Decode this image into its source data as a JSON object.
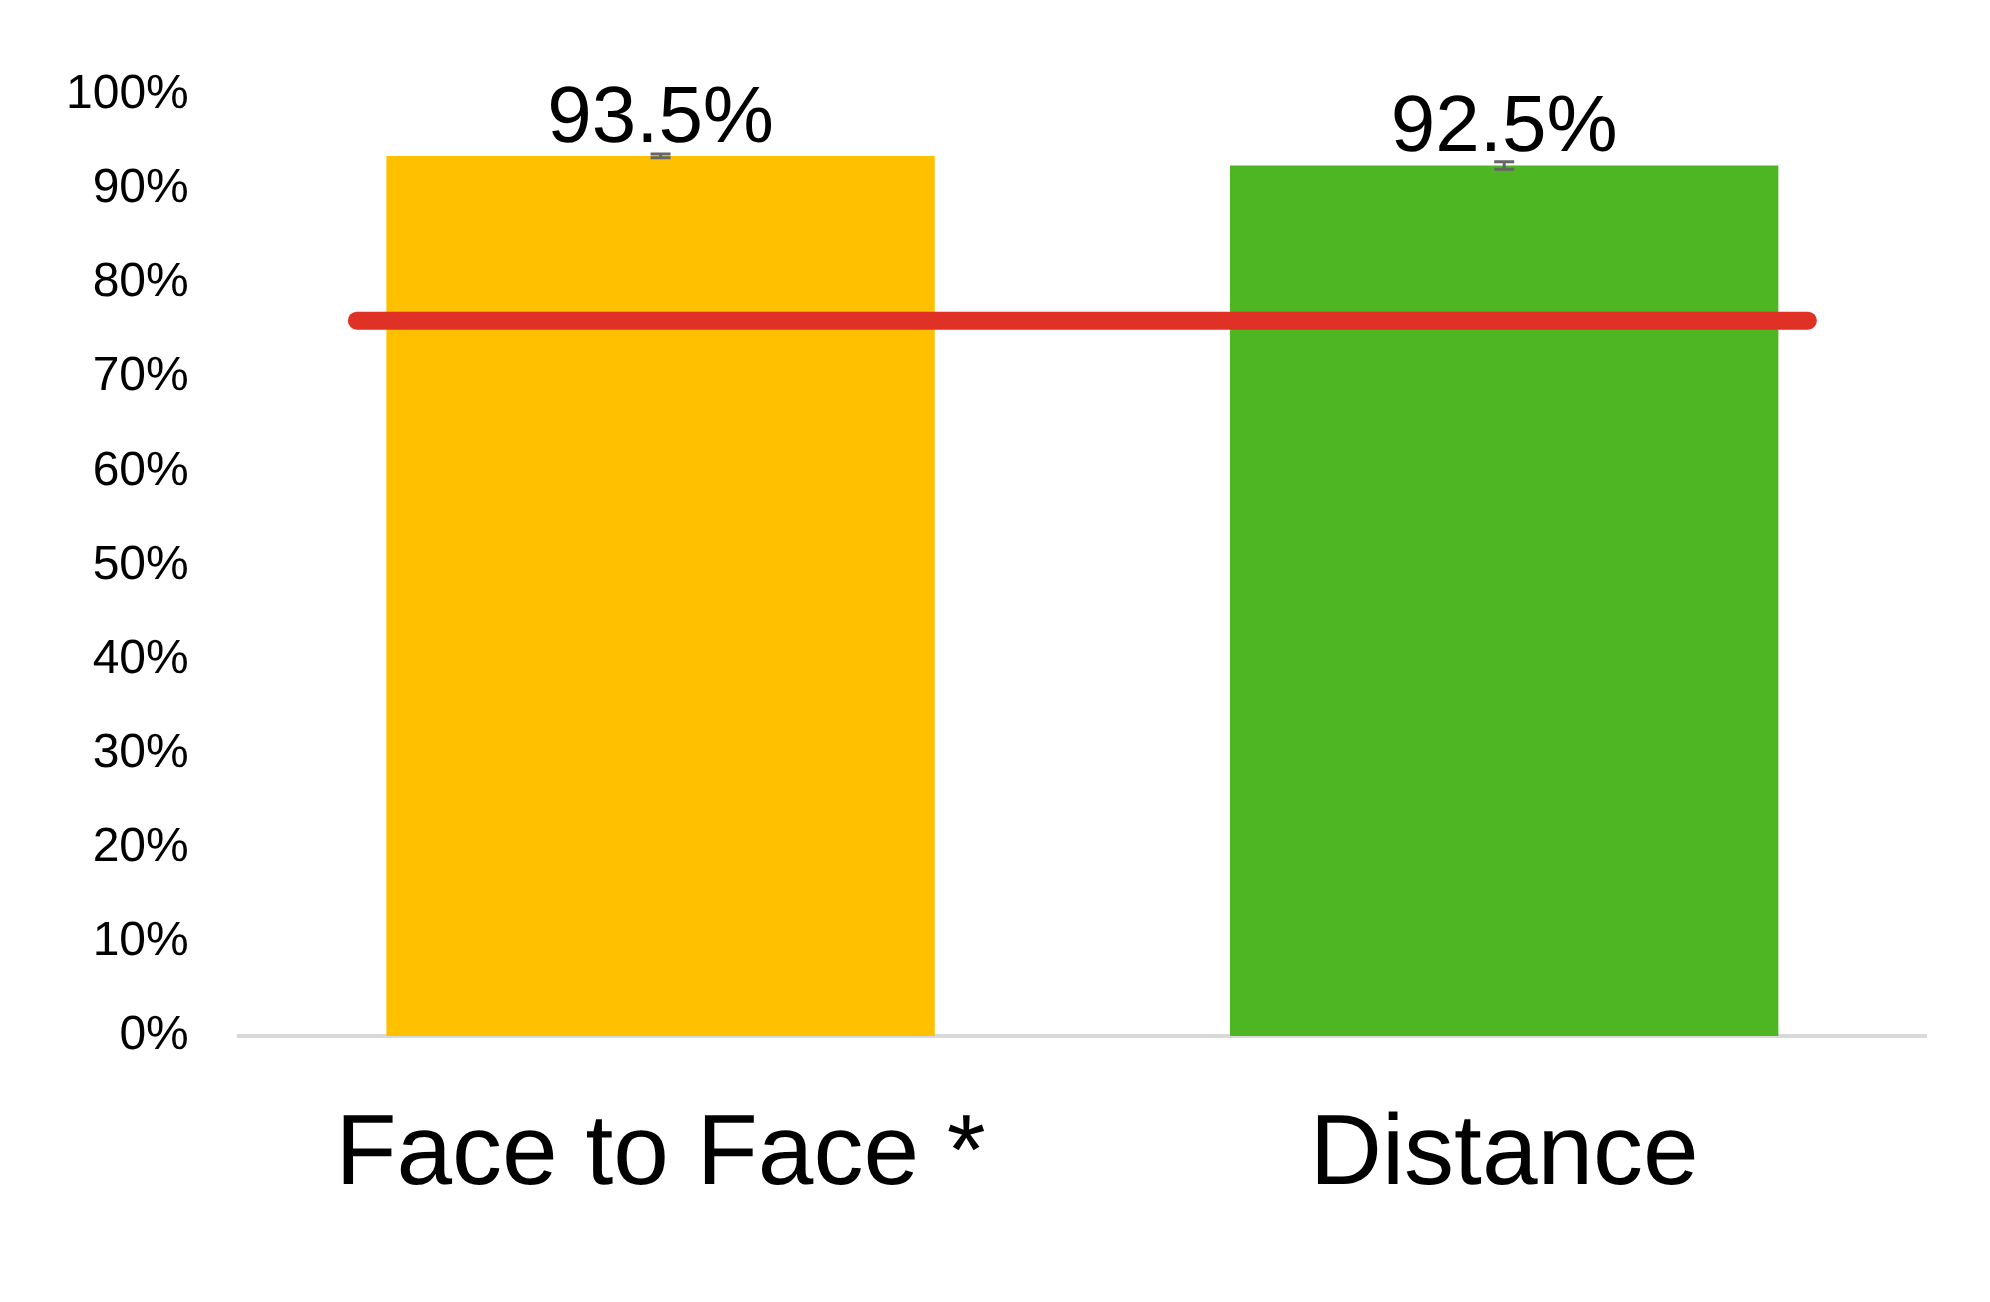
{
  "chart_data": {
    "type": "bar",
    "categories": [
      "Face to Face *",
      "Distance"
    ],
    "values": [
      93.5,
      92.5
    ],
    "colors": [
      "#ffc000",
      "#4fb623"
    ],
    "errors": [
      0.2,
      0.4
    ],
    "value_labels": [
      "93.5%",
      "92.5%"
    ],
    "ylim": [
      0,
      100
    ],
    "yticks": [
      {
        "value": 0,
        "label": "0%"
      },
      {
        "value": 10,
        "label": "10%"
      },
      {
        "value": 20,
        "label": "20%"
      },
      {
        "value": 30,
        "label": "30%"
      },
      {
        "value": 40,
        "label": "40%"
      },
      {
        "value": 50,
        "label": "50%"
      },
      {
        "value": 60,
        "label": "60%"
      },
      {
        "value": 70,
        "label": "70%"
      },
      {
        "value": 80,
        "label": "80%"
      },
      {
        "value": 90,
        "label": "90%"
      },
      {
        "value": 100,
        "label": "100%"
      }
    ],
    "ref_lines": [
      {
        "axis": "y",
        "value": 76,
        "color": "#e03127"
      }
    ],
    "grid": false,
    "legend": false
  }
}
